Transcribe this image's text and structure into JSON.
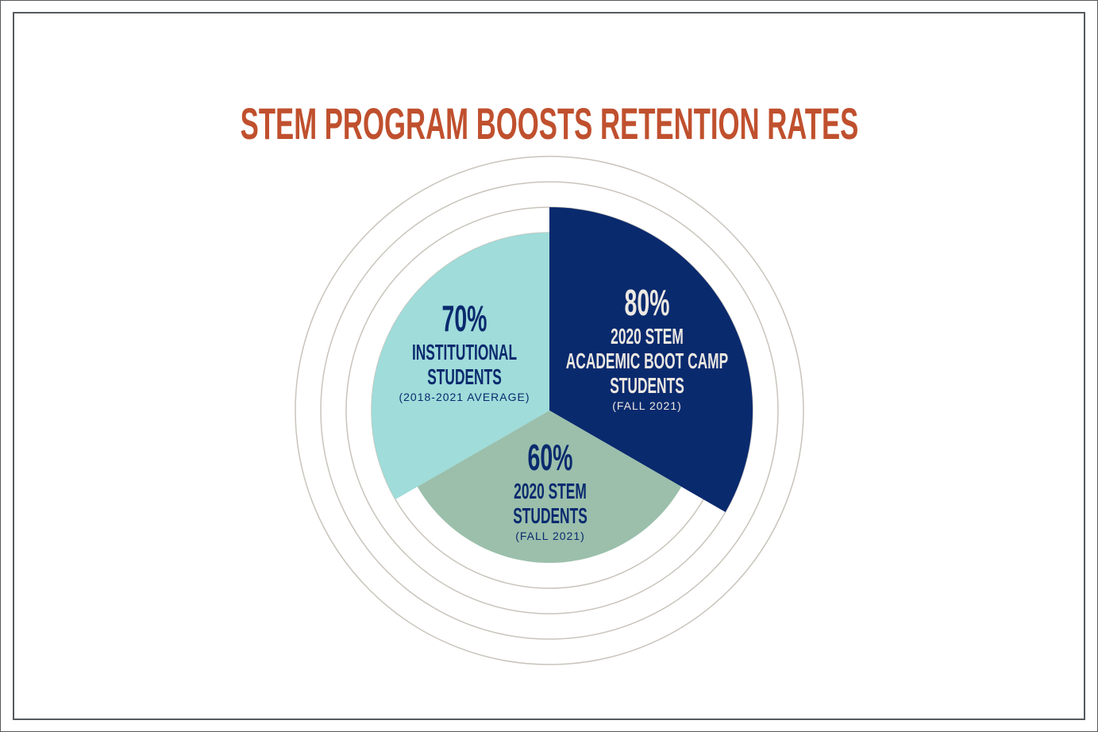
{
  "chart_data": {
    "type": "polar-area",
    "title": "STEM PROGRAM BOOSTS RETENTION RATES",
    "rlim": [
      0,
      100
    ],
    "rings": [
      70,
      80,
      90,
      100
    ],
    "slices": [
      {
        "value": 80,
        "value_label": "80%",
        "label_lines": [
          "2020 STEM",
          "ACADEMIC BOOT CAMP",
          "STUDENTS"
        ],
        "note": "(FALL 2021)",
        "color": "#0a2a6e",
        "text_color": "#ece8e2"
      },
      {
        "value": 60,
        "value_label": "60%",
        "label_lines": [
          "2020 STEM",
          "STUDENTS"
        ],
        "note": "(FALL 2021)",
        "color": "#9bbfab",
        "text_color": "#0a2a6e"
      },
      {
        "value": 70,
        "value_label": "70%",
        "label_lines": [
          "INSTITUTIONAL",
          "STUDENTS"
        ],
        "note": "(2018-2021 AVERAGE)",
        "color": "#9fdcda",
        "text_color": "#0a2a6e"
      }
    ],
    "ring_color": "#c9c4bb",
    "title_color": "#c0502e"
  }
}
